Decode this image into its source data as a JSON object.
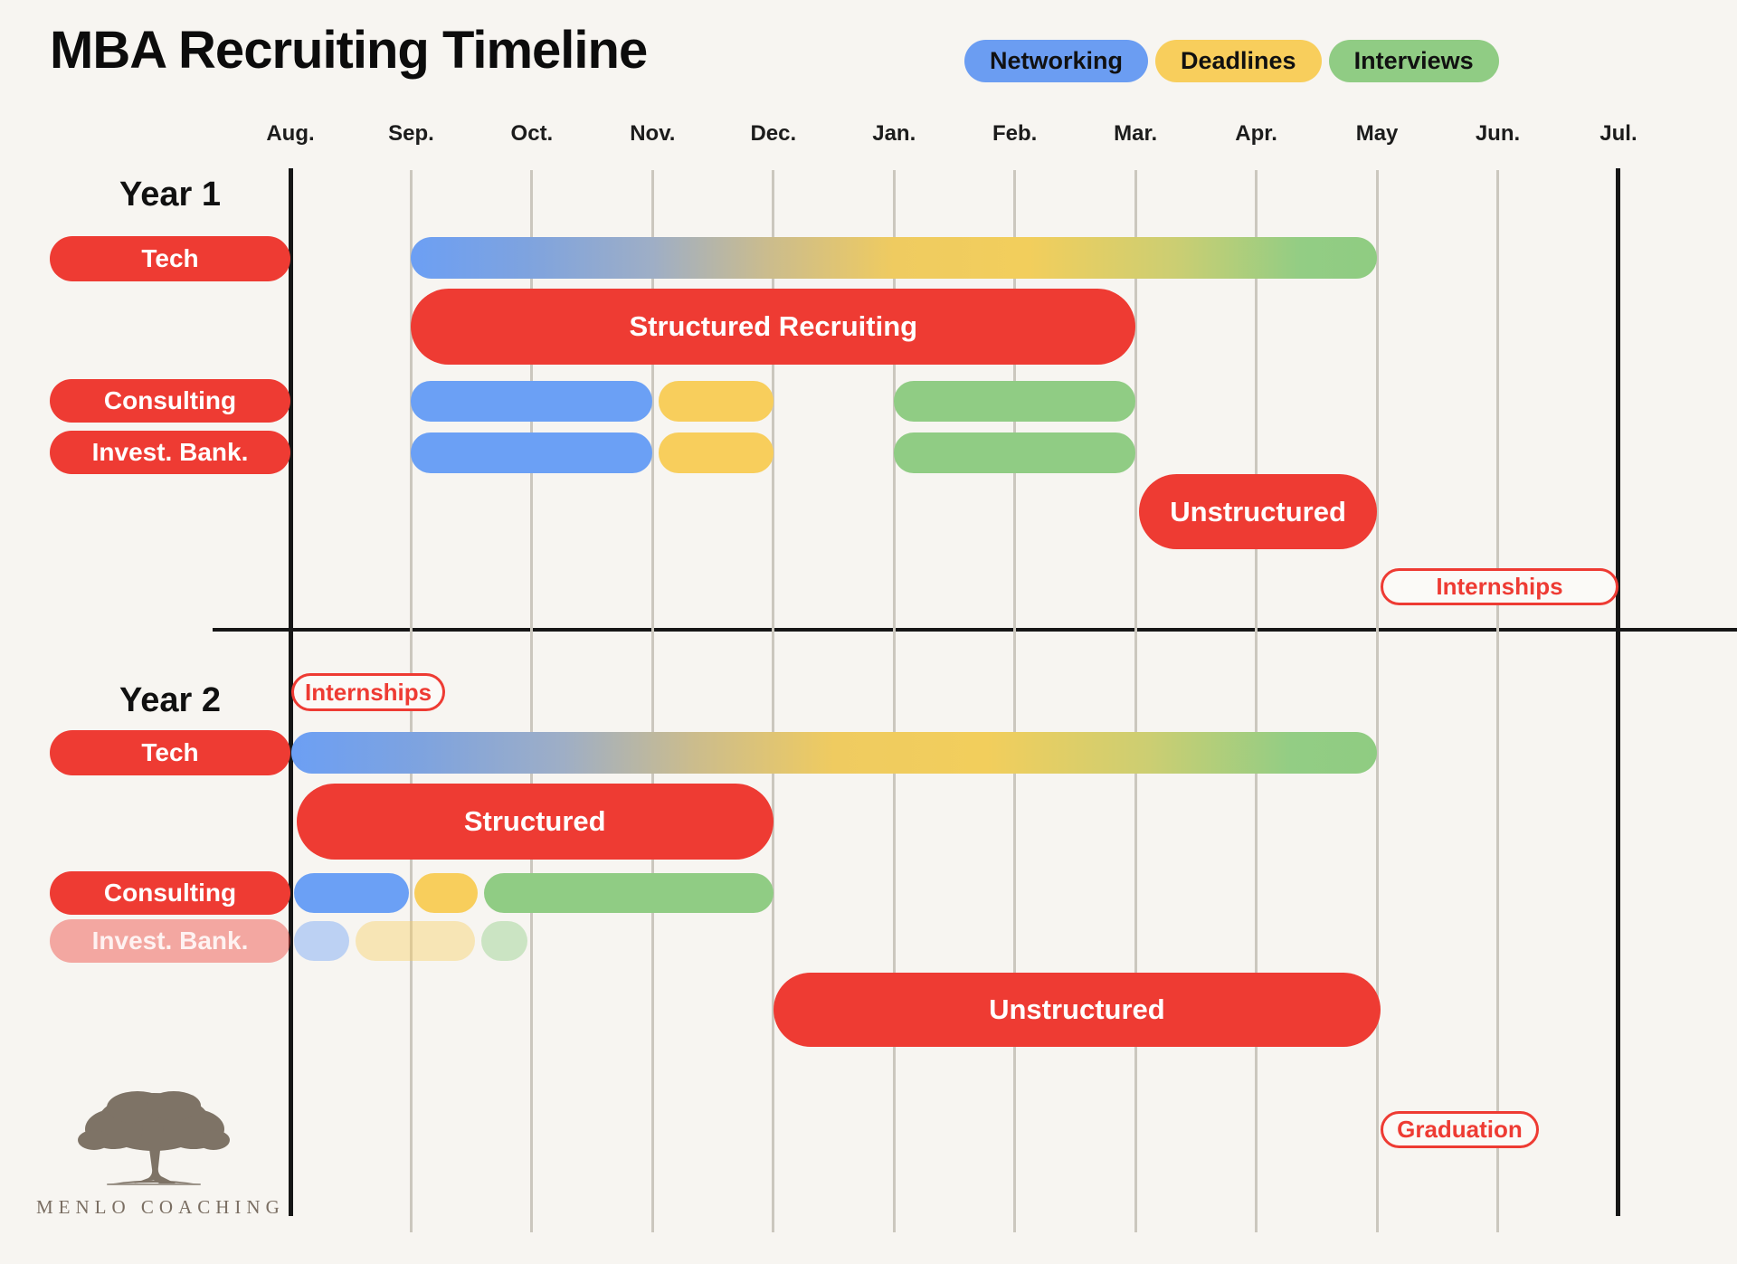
{
  "title": "MBA Recruiting Timeline",
  "legend": [
    {
      "label": "Networking",
      "color": "#6B9DF2"
    },
    {
      "label": "Deadlines",
      "color": "#F8CE5C"
    },
    {
      "label": "Interviews",
      "color": "#90CC84"
    }
  ],
  "months": [
    "Aug.",
    "Sep.",
    "Oct.",
    "Nov.",
    "Dec.",
    "Jan.",
    "Feb.",
    "Mar.",
    "Apr.",
    "May",
    "Jun.",
    "Jul."
  ],
  "sections": [
    {
      "key": "year1",
      "label": "Year 1",
      "row_labels": [
        {
          "row": "tech",
          "label": "Tech",
          "faded": false
        },
        {
          "row": "consulting",
          "label": "Consulting",
          "faded": false
        },
        {
          "row": "investbank",
          "label": "Invest. Bank.",
          "faded": false
        }
      ]
    },
    {
      "key": "year2",
      "label": "Year 2",
      "row_labels": [
        {
          "row": "tech",
          "label": "Tech",
          "faded": false
        },
        {
          "row": "consulting",
          "label": "Consulting",
          "faded": false
        },
        {
          "row": "investbank",
          "label": "Invest. Bank.",
          "faded": true
        }
      ]
    }
  ],
  "logo": {
    "brand": "MENLO COACHING"
  },
  "colors": {
    "background": "#F7F5F1",
    "red": "#EE3B33",
    "networking_blue": "#6BA0F5",
    "deadlines_yellow": "#F8CE5C",
    "interviews_green": "#90CC84",
    "gridline_gray": "#CBC7BE",
    "axis_black": "#161616",
    "logo_brown": "#7A6E62"
  },
  "chart_data": {
    "type": "gantt",
    "title": "MBA Recruiting Timeline",
    "x_axis": {
      "unit": "month",
      "labels": [
        "Aug.",
        "Sep.",
        "Oct.",
        "Nov.",
        "Dec.",
        "Jan.",
        "Feb.",
        "Mar.",
        "Apr.",
        "May",
        "Jun.",
        "Jul."
      ],
      "origin_month_index": 0
    },
    "legend_categories": [
      "Networking",
      "Deadlines",
      "Interviews"
    ],
    "notes": "start/end are month offsets from Aug (0) to Jul (11); gradient bars blend Networking→Deadlines→Interviews over their span",
    "bars": [
      {
        "section": "year1",
        "row": "tech",
        "kind": "gradient",
        "label": "",
        "start": 1,
        "end": 9,
        "faded": false
      },
      {
        "section": "year1",
        "row": "structured",
        "kind": "phase",
        "label": "Structured Recruiting",
        "start": 1,
        "end": 7,
        "faded": false
      },
      {
        "section": "year1",
        "row": "consulting",
        "kind": "networking",
        "label": "",
        "start": 1,
        "end": 3,
        "faded": false
      },
      {
        "section": "year1",
        "row": "consulting",
        "kind": "deadlines",
        "label": "",
        "start": 3.05,
        "end": 4,
        "faded": false
      },
      {
        "section": "year1",
        "row": "consulting",
        "kind": "interviews",
        "label": "",
        "start": 5,
        "end": 7,
        "faded": false
      },
      {
        "section": "year1",
        "row": "investbank",
        "kind": "networking",
        "label": "",
        "start": 1,
        "end": 3,
        "faded": false
      },
      {
        "section": "year1",
        "row": "investbank",
        "kind": "deadlines",
        "label": "",
        "start": 3.05,
        "end": 4,
        "faded": false
      },
      {
        "section": "year1",
        "row": "investbank",
        "kind": "interviews",
        "label": "",
        "start": 5,
        "end": 7,
        "faded": false
      },
      {
        "section": "year1",
        "row": "unstructured",
        "kind": "phase",
        "label": "Unstructured",
        "start": 7.03,
        "end": 9,
        "faded": false
      },
      {
        "section": "year1",
        "row": "internships",
        "kind": "milestone",
        "label": "Internships",
        "start": 9.03,
        "end": 11,
        "faded": false
      },
      {
        "section": "year2",
        "row": "internships",
        "kind": "milestone",
        "label": "Internships",
        "start": 0.01,
        "end": 1.28,
        "faded": false
      },
      {
        "section": "year2",
        "row": "tech",
        "kind": "gradient",
        "label": "",
        "start": 0.01,
        "end": 9,
        "faded": false
      },
      {
        "section": "year2",
        "row": "structured",
        "kind": "phase",
        "label": "Structured",
        "start": 0.05,
        "end": 4,
        "faded": false
      },
      {
        "section": "year2",
        "row": "consulting",
        "kind": "networking",
        "label": "",
        "start": 0.03,
        "end": 0.98,
        "faded": false
      },
      {
        "section": "year2",
        "row": "consulting",
        "kind": "deadlines",
        "label": "",
        "start": 1.03,
        "end": 1.55,
        "faded": false
      },
      {
        "section": "year2",
        "row": "consulting",
        "kind": "interviews",
        "label": "",
        "start": 1.6,
        "end": 4,
        "faded": false
      },
      {
        "section": "year2",
        "row": "investbank",
        "kind": "networking",
        "label": "",
        "start": 0.03,
        "end": 0.49,
        "faded": true
      },
      {
        "section": "year2",
        "row": "investbank",
        "kind": "deadlines",
        "label": "",
        "start": 0.54,
        "end": 1.53,
        "faded": true
      },
      {
        "section": "year2",
        "row": "investbank",
        "kind": "interviews",
        "label": "",
        "start": 1.58,
        "end": 1.96,
        "faded": true
      },
      {
        "section": "year2",
        "row": "unstructured",
        "kind": "phase",
        "label": "Unstructured",
        "start": 4,
        "end": 9.03,
        "faded": false
      },
      {
        "section": "year2",
        "row": "graduation",
        "kind": "milestone",
        "label": "Graduation",
        "start": 9.03,
        "end": 10.34,
        "faded": false
      }
    ]
  }
}
